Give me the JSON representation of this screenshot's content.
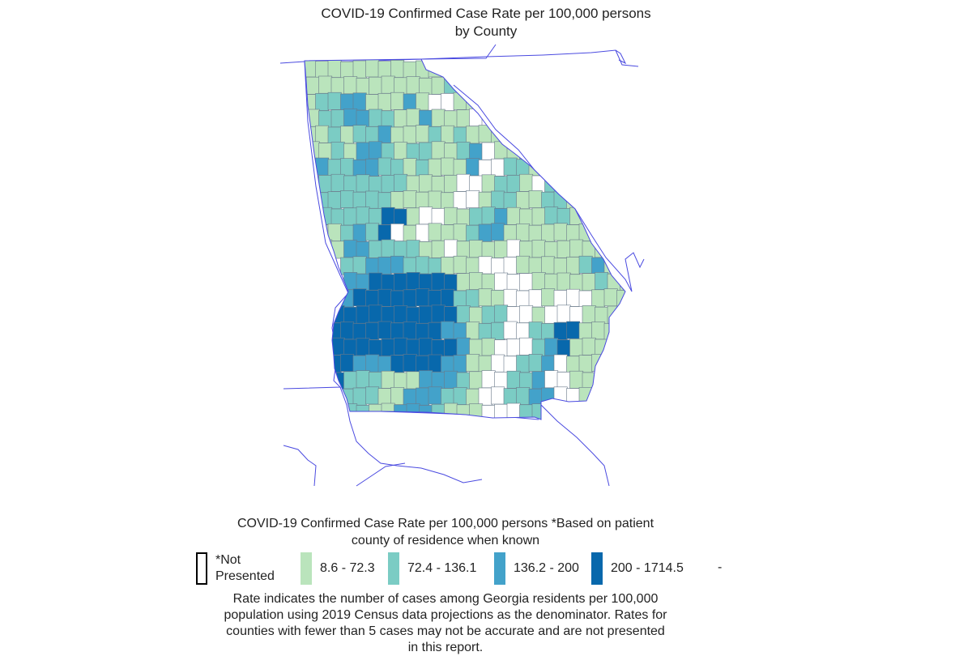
{
  "title": {
    "line1": "COVID-19 Confirmed Case Rate per 100,000 persons",
    "line2": "by County"
  },
  "legend": {
    "title_line1": "COVID-19 Confirmed Case Rate per 100,000 persons *Based on patient",
    "title_line2": "county of residence when known",
    "items": [
      {
        "label": "*Not\nPresented",
        "color": "#ffffff",
        "border": "#000000"
      },
      {
        "label": "8.6 - 72.3",
        "color": "#bae4bc",
        "border": "#bae4bc"
      },
      {
        "label": "72.4 - 136.1",
        "color": "#7bccc4",
        "border": "#7bccc4"
      },
      {
        "label": "136.2 - 200",
        "color": "#43a2ca",
        "border": "#43a2ca"
      },
      {
        "label": "200 - 1714.5",
        "color": "#0868ac",
        "border": "#0868ac"
      }
    ],
    "trailing": "-"
  },
  "note": {
    "line1": "Rate indicates the number of cases among Georgia residents per 100,000",
    "line2": "population using 2019 Census data projections as the denominator. Rates for",
    "line3": "counties with fewer than 5 cases may not be accurate and are not presented",
    "line4": "in this report."
  },
  "colors": {
    "boundary": "#4a4ae0",
    "county_edge": "#6a7a8a",
    "notPresented": "#ffffff",
    "low": "#bae4bc",
    "midLow": "#7bccc4",
    "midHigh": "#43a2ca",
    "high": "#0868ac"
  }
}
